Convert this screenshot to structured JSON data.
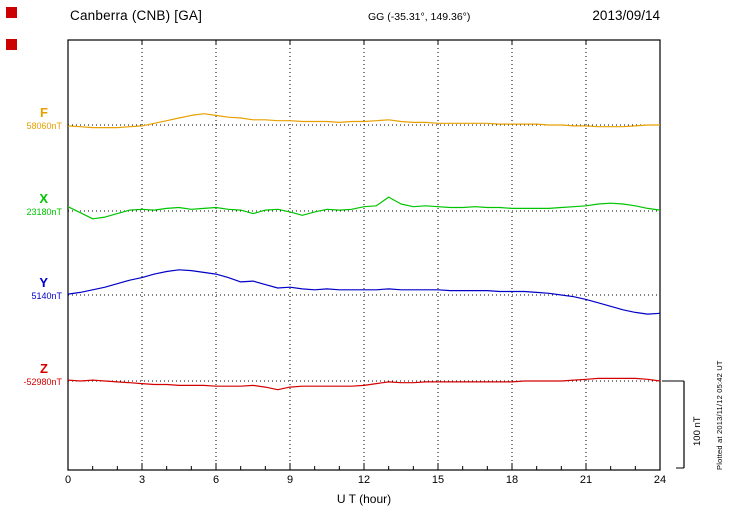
{
  "header": {
    "station": "Canberra (CNB)  [GA]",
    "coords": "GG (-35.31°, 149.36°)",
    "date": "2013/09/14"
  },
  "footer": {
    "plotted_note": "Plotted at 2013/11/12 05:42 UT"
  },
  "scale_bar": {
    "label": "100 nT",
    "nT": 100
  },
  "chart_data": {
    "type": "line",
    "title": "Canberra (CNB) [GA] magnetogram",
    "xlabel": "U T (hour)",
    "xlim": [
      0,
      24
    ],
    "x_ticks": [
      0,
      3,
      6,
      9,
      12,
      15,
      18,
      21,
      24
    ],
    "x_minor_step": 1,
    "x_start": 0,
    "x_step": 0.5,
    "grid": "dotted vertical at 3h and dotted horizontal at each baseline",
    "legend_position": "left baseline labels",
    "series": [
      {
        "name": "F",
        "baseline_label": "58060nT",
        "baseline_nT": 58060,
        "color": "#e8a000",
        "deviations_nT": [
          -1,
          -2,
          -3,
          -3,
          -3,
          -2,
          -1,
          2,
          5,
          8,
          11,
          13,
          11,
          9,
          8,
          6,
          6,
          5,
          5,
          4,
          4,
          4,
          3,
          4,
          4,
          5,
          6,
          4,
          3,
          3,
          2,
          2,
          2,
          2,
          2,
          1,
          1,
          1,
          1,
          0,
          0,
          -1,
          -1,
          -2,
          -2,
          -2,
          -1,
          0,
          0
        ]
      },
      {
        "name": "X",
        "baseline_label": "23180nT",
        "baseline_nT": 23180,
        "color": "#00c400",
        "deviations_nT": [
          5,
          -2,
          -9,
          -7,
          -3,
          1,
          2,
          1,
          3,
          4,
          2,
          3,
          4,
          2,
          1,
          -3,
          1,
          2,
          -1,
          -5,
          -1,
          2,
          1,
          2,
          5,
          6,
          16,
          8,
          5,
          6,
          5,
          4,
          4,
          5,
          4,
          4,
          3,
          3,
          3,
          3,
          4,
          5,
          6,
          8,
          9,
          8,
          6,
          3,
          1
        ]
      },
      {
        "name": "Y",
        "baseline_label": "5140nT",
        "baseline_nT": 5140,
        "color": "#0000c8",
        "deviations_nT": [
          1,
          3,
          6,
          9,
          13,
          17,
          20,
          24,
          27,
          29,
          28,
          26,
          24,
          20,
          15,
          16,
          12,
          8,
          9,
          7,
          6,
          7,
          6,
          6,
          6,
          6,
          7,
          6,
          6,
          6,
          6,
          5,
          5,
          5,
          5,
          4,
          4,
          4,
          3,
          2,
          0,
          -2,
          -5,
          -9,
          -13,
          -17,
          -20,
          -22,
          -21
        ]
      },
      {
        "name": "Z",
        "baseline_label": "-52980nT",
        "baseline_nT": -52980,
        "color": "#d40000",
        "deviations_nT": [
          1,
          0,
          1,
          0,
          -1,
          -2,
          -3,
          -4,
          -4,
          -5,
          -5,
          -5,
          -6,
          -6,
          -6,
          -5,
          -7,
          -10,
          -7,
          -6,
          -6,
          -6,
          -6,
          -6,
          -5,
          -3,
          -1,
          -2,
          -2,
          -1,
          -1,
          -1,
          -1,
          -1,
          -1,
          -1,
          -1,
          0,
          0,
          0,
          0,
          1,
          2,
          3,
          3,
          3,
          3,
          2,
          0
        ]
      }
    ]
  }
}
